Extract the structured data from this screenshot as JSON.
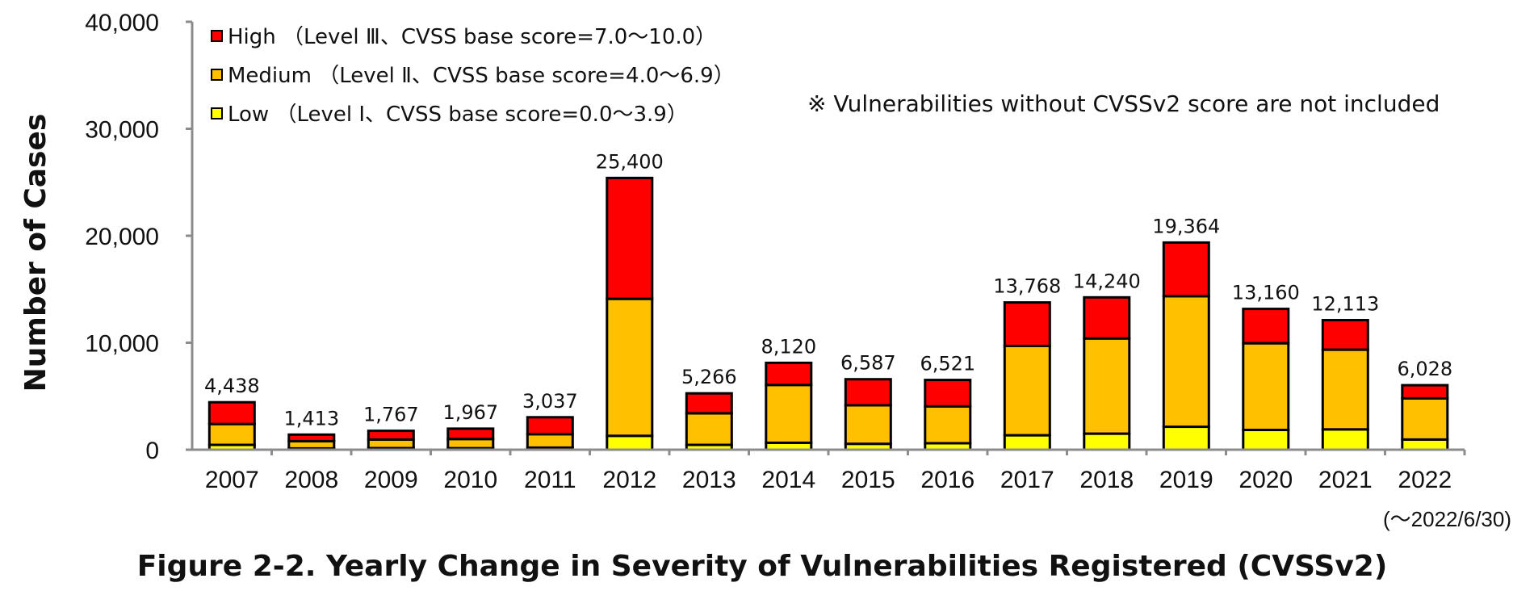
{
  "chart_data": {
    "type": "bar",
    "stacked": true,
    "title": "Figure 2-2. Yearly Change in Severity of Vulnerabilities Registered (CVSSv2)",
    "ylabel": "Number of Cases",
    "xlabel": "",
    "ylim": [
      0,
      40000
    ],
    "yticks": [
      0,
      10000,
      20000,
      30000,
      40000
    ],
    "ytick_labels": [
      "0",
      "10,000",
      "20,000",
      "30,000",
      "40,000"
    ],
    "categories": [
      "2007",
      "2008",
      "2009",
      "2010",
      "2011",
      "2012",
      "2013",
      "2014",
      "2015",
      "2016",
      "2017",
      "2018",
      "2019",
      "2020",
      "2021",
      "2022"
    ],
    "series": [
      {
        "name": "Low （Level Ⅰ、CVSS base score=0.0～3.9）",
        "color": "#ffff00",
        "values": [
          450,
          120,
          150,
          150,
          200,
          1300,
          450,
          650,
          550,
          600,
          1350,
          1500,
          2150,
          1850,
          1900,
          950
        ]
      },
      {
        "name": "Medium （Level Ⅱ、CVSS base score=4.0～6.9）",
        "color": "#ffc000",
        "values": [
          1950,
          680,
          800,
          850,
          1250,
          12800,
          2950,
          5400,
          3600,
          3450,
          8350,
          8900,
          12200,
          8100,
          7450,
          3850
        ]
      },
      {
        "name": "High （Level Ⅲ、CVSS base score=7.0～10.0）",
        "color": "#ff0000",
        "values": [
          2038,
          613,
          817,
          967,
          1587,
          11300,
          1866,
          2070,
          2437,
          2471,
          4068,
          3840,
          5014,
          3210,
          2763,
          1228
        ]
      }
    ],
    "totals": [
      4438,
      1413,
      1767,
      1967,
      3037,
      25400,
      5266,
      8120,
      6587,
      6521,
      13768,
      14240,
      19364,
      13160,
      12113,
      6028
    ],
    "total_labels": [
      "4,438",
      "1,413",
      "1,767",
      "1,967",
      "3,037",
      "25,400",
      "5,266",
      "8,120",
      "6,587",
      "6,521",
      "13,768",
      "14,240",
      "19,364",
      "13,160",
      "12,113",
      "6,028"
    ],
    "legend_position": "top-left",
    "grid": false,
    "annotations": {
      "note": "※ Vulnerabilities without CVSSv2 score are not included",
      "date_range": "(～2022/6/30)"
    }
  }
}
